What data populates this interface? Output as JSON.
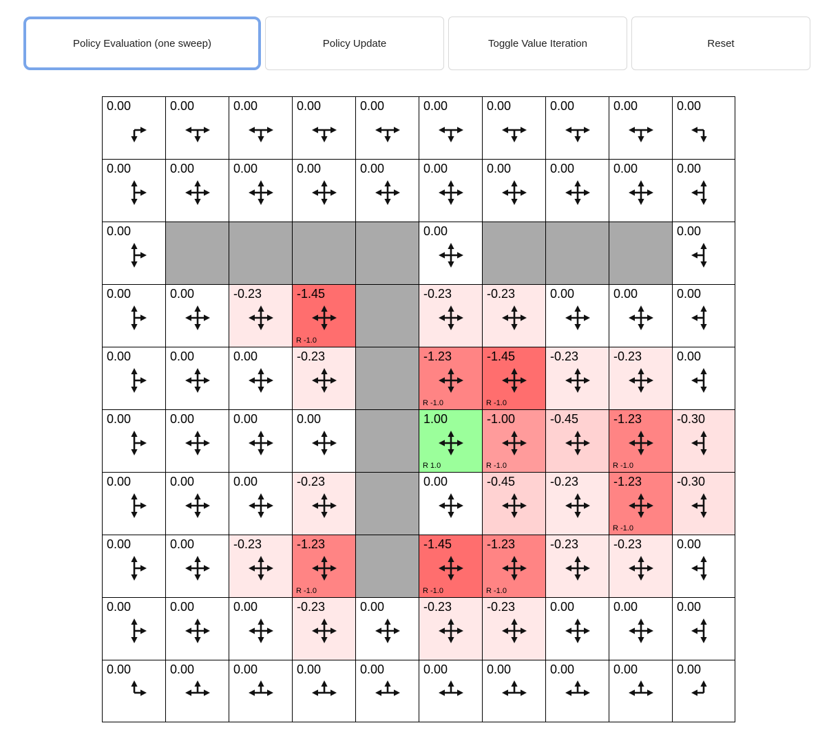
{
  "toolbar": {
    "buttons": [
      {
        "label": "Policy Evaluation (one sweep)",
        "active": true
      },
      {
        "label": "Policy Update",
        "active": false
      },
      {
        "label": "Toggle Value Iteration",
        "active": false
      },
      {
        "label": "Reset",
        "active": false
      }
    ]
  },
  "colors": {
    "wall": "#aaaaaa",
    "active_button_border": "#7aa6ea",
    "arrow": "#111111",
    "values": {
      "0.00": "#ffffff",
      "-0.23": "#ffe8e8",
      "-0.30": "#ffe1e1",
      "-0.45": "#ffd2d2",
      "-1.00": "#ff9b9b",
      "-1.23": "#ff8484",
      "-1.45": "#ff6e6e",
      "1.00": "#9bff9b"
    }
  },
  "grid": {
    "rows": 10,
    "cols": 10,
    "cells": [
      [
        {
          "v": "0.00"
        },
        {
          "v": "0.00"
        },
        {
          "v": "0.00"
        },
        {
          "v": "0.00"
        },
        {
          "v": "0.00"
        },
        {
          "v": "0.00"
        },
        {
          "v": "0.00"
        },
        {
          "v": "0.00"
        },
        {
          "v": "0.00"
        },
        {
          "v": "0.00"
        }
      ],
      [
        {
          "v": "0.00"
        },
        {
          "v": "0.00"
        },
        {
          "v": "0.00"
        },
        {
          "v": "0.00"
        },
        {
          "v": "0.00"
        },
        {
          "v": "0.00"
        },
        {
          "v": "0.00"
        },
        {
          "v": "0.00"
        },
        {
          "v": "0.00"
        },
        {
          "v": "0.00"
        }
      ],
      [
        {
          "v": "0.00"
        },
        null,
        null,
        null,
        null,
        {
          "v": "0.00"
        },
        null,
        null,
        null,
        {
          "v": "0.00"
        }
      ],
      [
        {
          "v": "0.00"
        },
        {
          "v": "0.00"
        },
        {
          "v": "-0.23"
        },
        {
          "v": "-1.45",
          "r": "R -1.0"
        },
        null,
        {
          "v": "-0.23"
        },
        {
          "v": "-0.23"
        },
        {
          "v": "0.00"
        },
        {
          "v": "0.00"
        },
        {
          "v": "0.00"
        }
      ],
      [
        {
          "v": "0.00"
        },
        {
          "v": "0.00"
        },
        {
          "v": "0.00"
        },
        {
          "v": "-0.23"
        },
        null,
        {
          "v": "-1.23",
          "r": "R -1.0"
        },
        {
          "v": "-1.45",
          "r": "R -1.0"
        },
        {
          "v": "-0.23"
        },
        {
          "v": "-0.23"
        },
        {
          "v": "0.00"
        }
      ],
      [
        {
          "v": "0.00"
        },
        {
          "v": "0.00"
        },
        {
          "v": "0.00"
        },
        {
          "v": "0.00"
        },
        null,
        {
          "v": "1.00",
          "r": "R 1.0"
        },
        {
          "v": "-1.00",
          "r": "R -1.0"
        },
        {
          "v": "-0.45"
        },
        {
          "v": "-1.23",
          "r": "R -1.0"
        },
        {
          "v": "-0.30"
        }
      ],
      [
        {
          "v": "0.00"
        },
        {
          "v": "0.00"
        },
        {
          "v": "0.00"
        },
        {
          "v": "-0.23"
        },
        null,
        {
          "v": "0.00"
        },
        {
          "v": "-0.45"
        },
        {
          "v": "-0.23"
        },
        {
          "v": "-1.23",
          "r": "R -1.0"
        },
        {
          "v": "-0.30"
        }
      ],
      [
        {
          "v": "0.00"
        },
        {
          "v": "0.00"
        },
        {
          "v": "-0.23"
        },
        {
          "v": "-1.23",
          "r": "R -1.0"
        },
        null,
        {
          "v": "-1.45",
          "r": "R -1.0"
        },
        {
          "v": "-1.23",
          "r": "R -1.0"
        },
        {
          "v": "-0.23"
        },
        {
          "v": "-0.23"
        },
        {
          "v": "0.00"
        }
      ],
      [
        {
          "v": "0.00"
        },
        {
          "v": "0.00"
        },
        {
          "v": "0.00"
        },
        {
          "v": "-0.23"
        },
        {
          "v": "0.00"
        },
        {
          "v": "-0.23"
        },
        {
          "v": "-0.23"
        },
        {
          "v": "0.00"
        },
        {
          "v": "0.00"
        },
        {
          "v": "0.00"
        }
      ],
      [
        {
          "v": "0.00"
        },
        {
          "v": "0.00"
        },
        {
          "v": "0.00"
        },
        {
          "v": "0.00"
        },
        {
          "v": "0.00"
        },
        {
          "v": "0.00"
        },
        {
          "v": "0.00"
        },
        {
          "v": "0.00"
        },
        {
          "v": "0.00"
        },
        {
          "v": "0.00"
        }
      ]
    ]
  }
}
